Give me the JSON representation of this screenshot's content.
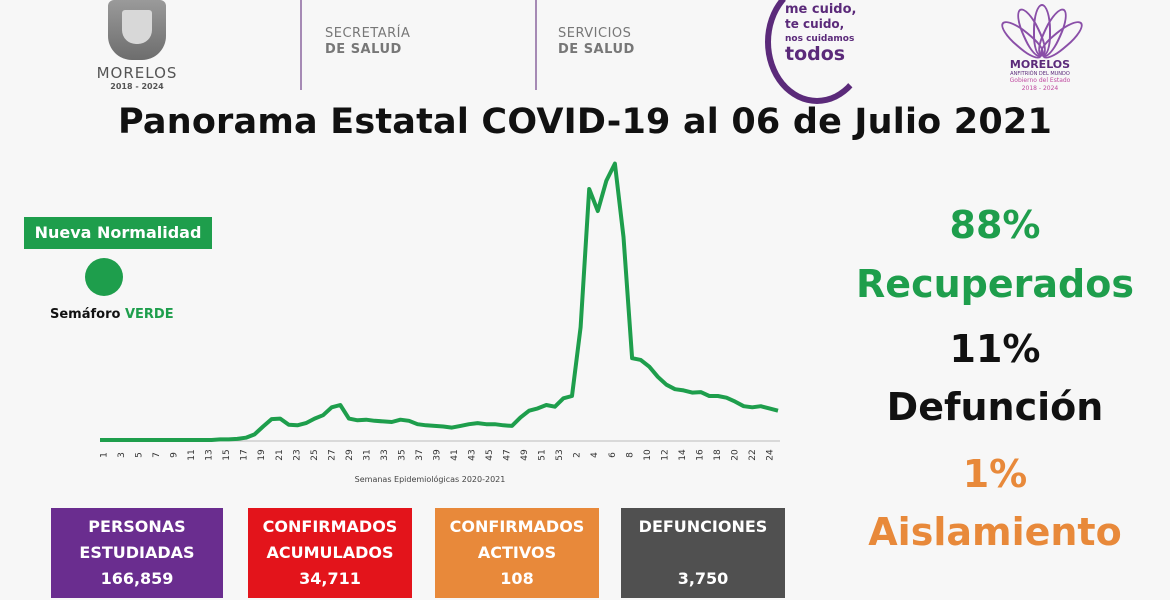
{
  "header": {
    "logo_left": {
      "name": "MORELOS",
      "years": "2018 - 2024"
    },
    "dept1": {
      "line1": "SECRETARÍA",
      "line2": "DE SALUD"
    },
    "dept2": {
      "line1": "SERVICIOS",
      "line2": "DE SALUD"
    },
    "campaign": {
      "line1": "me cuido,",
      "line2": "te cuido,",
      "line3": "nos cuidamos",
      "line4": "todos"
    },
    "logo_right": {
      "name": "MORELOS",
      "tag": "ANFITRIÓN DEL MUNDO",
      "sub1": "Gobierno del Estado",
      "sub2": "2018 - 2024"
    },
    "accent": "#5b2a7a"
  },
  "title": "Panorama Estatal COVID-19 al 06 de Julio 2021",
  "semaforo": {
    "badge": "Nueva Normalidad",
    "label": "Semáforo",
    "state": "VERDE",
    "color": "#1e9e4c"
  },
  "chart_data": {
    "type": "line",
    "xlabel": "Semanas Epidemiológicas 2020-2021",
    "tick_labels": [
      "1",
      "3",
      "5",
      "7",
      "9",
      "11",
      "13",
      "15",
      "17",
      "19",
      "21",
      "23",
      "25",
      "27",
      "29",
      "31",
      "33",
      "35",
      "37",
      "39",
      "41",
      "43",
      "45",
      "47",
      "49",
      "51",
      "53",
      "2",
      "4",
      "6",
      "8",
      "10",
      "12",
      "14",
      "16",
      "18",
      "20",
      "22",
      "24"
    ],
    "values": [
      0,
      0,
      0,
      0,
      0,
      0,
      0,
      0,
      0,
      0,
      0,
      0,
      0,
      0,
      1,
      1,
      2,
      4,
      10,
      24,
      37,
      38,
      27,
      26,
      30,
      38,
      44,
      58,
      62,
      38,
      35,
      36,
      34,
      33,
      32,
      36,
      34,
      28,
      26,
      25,
      24,
      22,
      25,
      28,
      30,
      28,
      28,
      26,
      25,
      40,
      52,
      56,
      62,
      59,
      74,
      78,
      200,
      445,
      406,
      460,
      490,
      360,
      145,
      142,
      130,
      112,
      98,
      90,
      88,
      84,
      85,
      78,
      78,
      75,
      68,
      60,
      58,
      60,
      56,
      52
    ],
    "ylim": [
      0,
      500
    ],
    "color": "#1e9e4c",
    "grid": false
  },
  "stats": {
    "recuperados": {
      "pct": "88%",
      "label": "Recuperados",
      "color": "#1e9e4c"
    },
    "defuncion": {
      "pct": "11%",
      "label": "Defunción",
      "color": "#111111"
    },
    "aislamiento": {
      "pct": "1%",
      "label": "Aislamiento",
      "color": "#e8893a"
    }
  },
  "boxes": {
    "estudiadas": {
      "l1": "PERSONAS",
      "l2": "ESTUDIADAS",
      "value": "166,859",
      "color": "#6a2d8f"
    },
    "acumulados": {
      "l1": "CONFIRMADOS",
      "l2": "ACUMULADOS",
      "value": "34,711",
      "color": "#e3141b"
    },
    "activos": {
      "l1": "CONFIRMADOS",
      "l2": "ACTIVOS",
      "value": "108",
      "color": "#e8893a"
    },
    "defunciones": {
      "l1": "DEFUNCIONES",
      "l2": "",
      "value": "3,750",
      "color": "#505050"
    }
  }
}
